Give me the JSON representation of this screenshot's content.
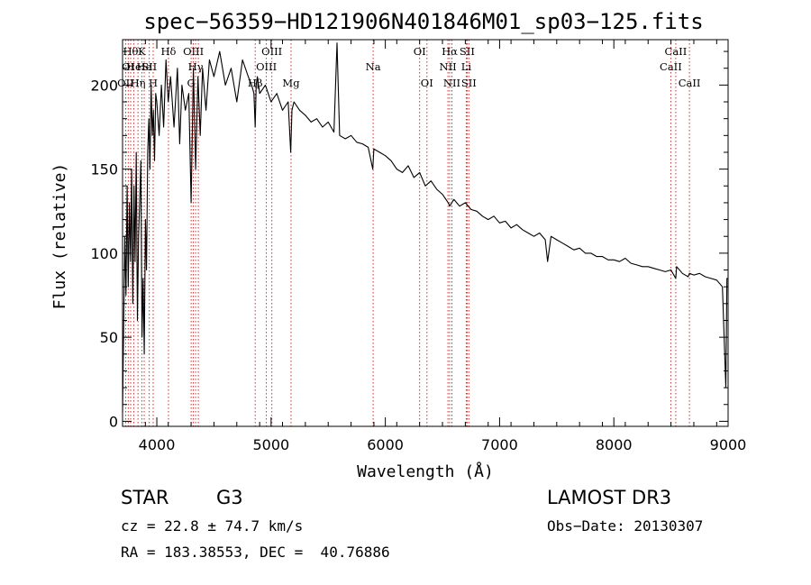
{
  "chart_data": {
    "type": "line",
    "title": "spec−56359−HD121906N401846M01_sp03−125.fits",
    "xlabel": "Wavelength (Å)",
    "ylabel": "Flux (relative)",
    "xlim": [
      3700,
      9000
    ],
    "ylim": [
      -3,
      227
    ],
    "xticks": [
      4000,
      5000,
      6000,
      7000,
      8000,
      9000
    ],
    "yticks": [
      0,
      50,
      100,
      150,
      200
    ],
    "series": [
      {
        "name": "flux",
        "color": "#000000",
        "x": [
          3700,
          3710,
          3720,
          3730,
          3740,
          3750,
          3760,
          3770,
          3780,
          3790,
          3800,
          3810,
          3820,
          3830,
          3840,
          3850,
          3860,
          3870,
          3880,
          3890,
          3900,
          3910,
          3920,
          3930,
          3940,
          3950,
          3960,
          3970,
          3980,
          3990,
          4000,
          4020,
          4040,
          4060,
          4080,
          4100,
          4120,
          4150,
          4180,
          4200,
          4220,
          4250,
          4280,
          4300,
          4320,
          4340,
          4360,
          4380,
          4400,
          4430,
          4460,
          4500,
          4550,
          4600,
          4650,
          4700,
          4750,
          4800,
          4830,
          4850,
          4861,
          4870,
          4880,
          4900,
          4950,
          5000,
          5050,
          5100,
          5150,
          5172,
          5183,
          5200,
          5250,
          5300,
          5350,
          5400,
          5450,
          5500,
          5550,
          5577,
          5600,
          5650,
          5700,
          5750,
          5800,
          5850,
          5890,
          5900,
          5950,
          6000,
          6050,
          6100,
          6150,
          6200,
          6250,
          6300,
          6350,
          6400,
          6450,
          6500,
          6550,
          6563,
          6600,
          6650,
          6700,
          6750,
          6800,
          6850,
          6900,
          6950,
          7000,
          7050,
          7100,
          7150,
          7200,
          7250,
          7300,
          7350,
          7400,
          7420,
          7450,
          7500,
          7550,
          7600,
          7650,
          7700,
          7750,
          7800,
          7850,
          7900,
          7950,
          8000,
          8050,
          8100,
          8150,
          8200,
          8250,
          8300,
          8350,
          8400,
          8450,
          8500,
          8542,
          8550,
          8600,
          8650,
          8662,
          8700,
          8750,
          8800,
          8850,
          8900,
          8950,
          8980,
          8990,
          9000
        ],
        "values": [
          5,
          60,
          110,
          75,
          140,
          80,
          130,
          95,
          150,
          70,
          140,
          95,
          160,
          60,
          110,
          130,
          155,
          50,
          85,
          40,
          120,
          90,
          160,
          180,
          150,
          200,
          170,
          185,
          155,
          195,
          190,
          170,
          200,
          175,
          215,
          190,
          205,
          175,
          210,
          165,
          200,
          185,
          195,
          130,
          210,
          150,
          205,
          170,
          210,
          185,
          215,
          205,
          220,
          200,
          210,
          190,
          215,
          205,
          200,
          195,
          175,
          200,
          205,
          195,
          200,
          190,
          195,
          185,
          190,
          160,
          185,
          190,
          185,
          182,
          178,
          180,
          175,
          178,
          172,
          225,
          170,
          168,
          170,
          166,
          165,
          163,
          150,
          162,
          160,
          158,
          155,
          150,
          148,
          152,
          145,
          148,
          140,
          143,
          138,
          135,
          130,
          128,
          132,
          128,
          130,
          126,
          125,
          122,
          120,
          122,
          118,
          119,
          115,
          117,
          114,
          112,
          110,
          112,
          108,
          95,
          110,
          108,
          106,
          104,
          102,
          103,
          100,
          100,
          98,
          98,
          96,
          96,
          95,
          97,
          94,
          93,
          92,
          92,
          91,
          90,
          89,
          90,
          85,
          92,
          88,
          86,
          88,
          87,
          88,
          86,
          85,
          84,
          80,
          20,
          85,
          85
        ]
      }
    ],
    "emission_lines": [
      {
        "wl": 3727,
        "label": "OII",
        "row": 2
      },
      {
        "wl": 3750,
        "label": "OI",
        "row": 1
      },
      {
        "wl": 3771,
        "label": "Hθ",
        "row": 0
      },
      {
        "wl": 3798,
        "label": "He",
        "row": 1
      },
      {
        "wl": 3835,
        "label": "Hη",
        "row": 2
      },
      {
        "wl": 3869,
        "label": "K",
        "row": 0
      },
      {
        "wl": 3889,
        "label": "He",
        "row": 1
      },
      {
        "wl": 3934,
        "label": "SII",
        "row": 1
      },
      {
        "wl": 3968,
        "label": "H",
        "row": 2
      },
      {
        "wl": 4102,
        "label": "Hδ",
        "row": 0
      },
      {
        "wl": 4300,
        "label": "G",
        "row": 2
      },
      {
        "wl": 4320,
        "label": "OIII",
        "row": 0
      },
      {
        "wl": 4340,
        "label": "Hγ",
        "row": 1
      },
      {
        "wl": 4363,
        "label": "",
        "row": 1
      },
      {
        "wl": 4861,
        "label": "Hβ",
        "row": 2
      },
      {
        "wl": 4959,
        "label": "OIII",
        "row": 1
      },
      {
        "wl": 5007,
        "label": "OIII",
        "row": 0
      },
      {
        "wl": 5175,
        "label": "Mg",
        "row": 2
      },
      {
        "wl": 5893,
        "label": "Na",
        "row": 1
      },
      {
        "wl": 6300,
        "label": "OI",
        "row": 0
      },
      {
        "wl": 6364,
        "label": "OI",
        "row": 2
      },
      {
        "wl": 6548,
        "label": "NII",
        "row": 1
      },
      {
        "wl": 6563,
        "label": "Hα",
        "row": 0
      },
      {
        "wl": 6583,
        "label": "NII",
        "row": 2
      },
      {
        "wl": 6708,
        "label": "Li",
        "row": 1
      },
      {
        "wl": 6716,
        "label": "SII",
        "row": 0
      },
      {
        "wl": 6731,
        "label": "SII",
        "row": 2
      },
      {
        "wl": 8498,
        "label": "CaII",
        "row": 1
      },
      {
        "wl": 8542,
        "label": "CaII",
        "row": 0
      },
      {
        "wl": 8662,
        "label": "CaII",
        "row": 2
      }
    ]
  },
  "info": {
    "object_class": "STAR",
    "subclass": "G3",
    "redshift": "cz = 22.8 ± 74.7 km/s",
    "coords": "RA = 183.38553, DEC =  40.76886",
    "survey": "LAMOST DR3",
    "obs_date": "Obs−Date: 20130307"
  }
}
